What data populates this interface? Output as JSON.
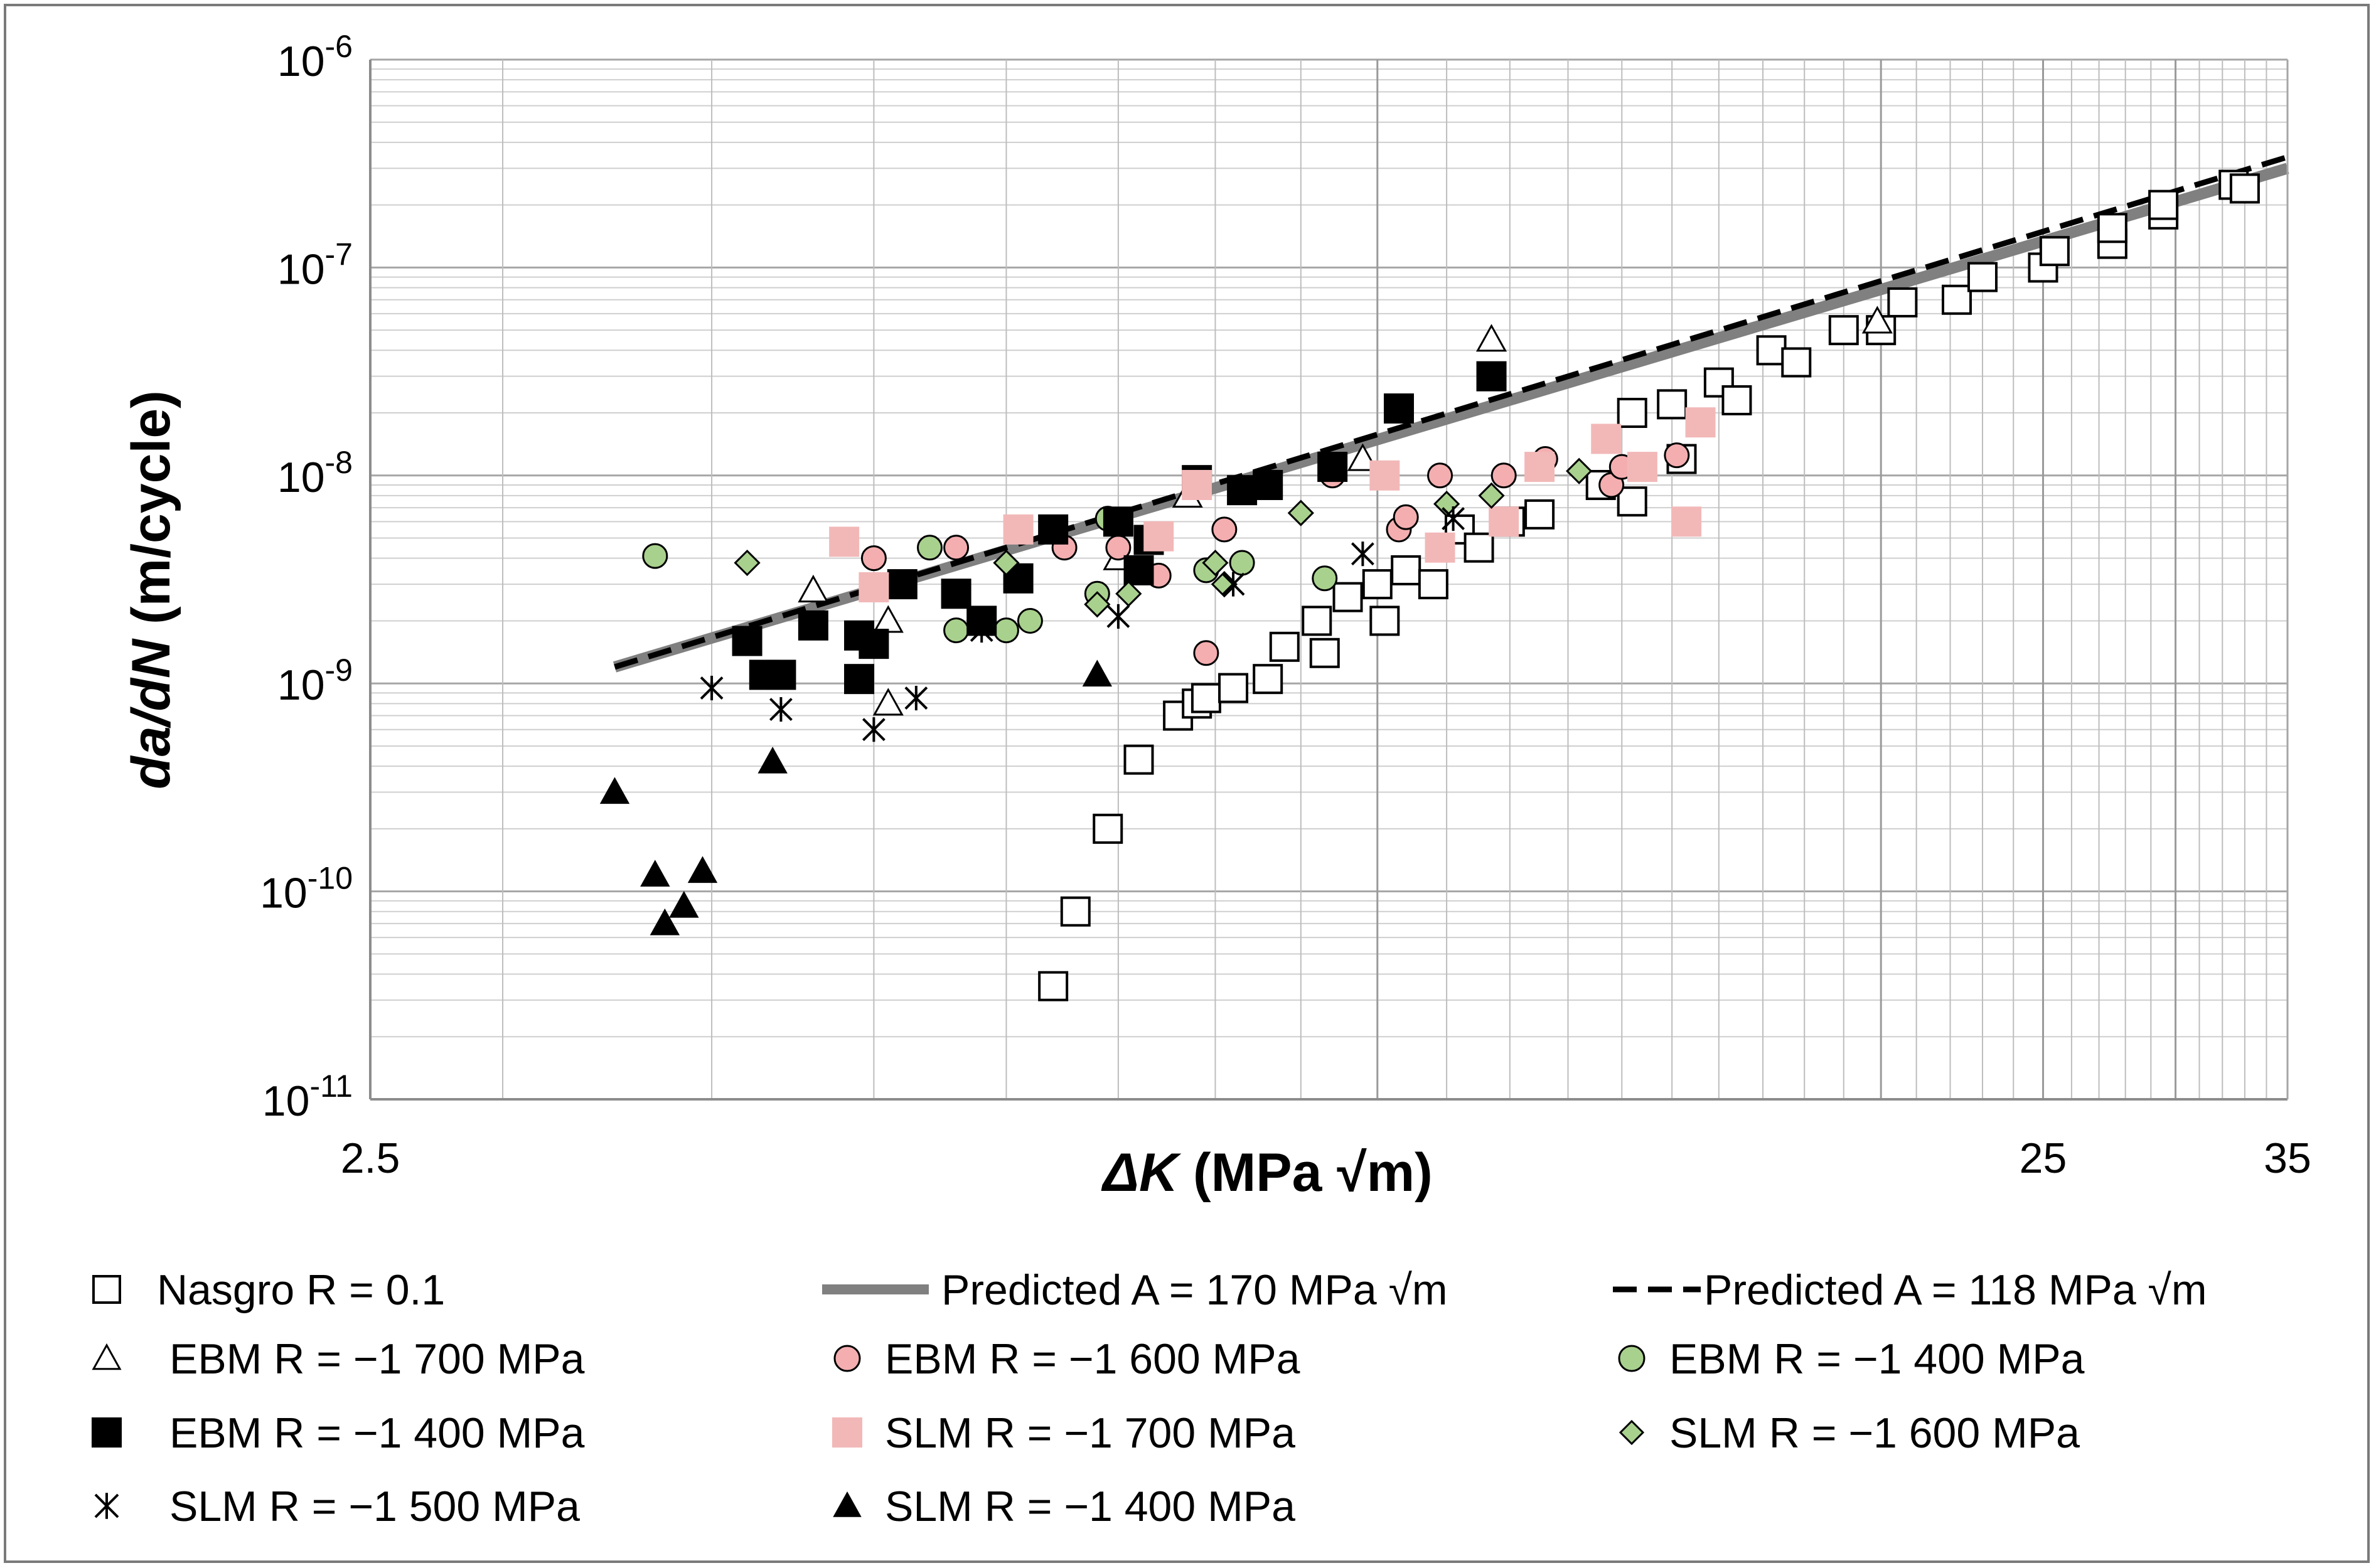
{
  "chart_data": {
    "type": "scatter",
    "x_scale": "log",
    "y_scale": "log",
    "xlim": [
      2.5,
      35
    ],
    "ylim": [
      1e-11,
      1e-06
    ],
    "grid": true,
    "xlabel": {
      "bold_italic": "ΔK",
      "rest": " (MPa √m)"
    },
    "ylabel": {
      "italic": "da/dN",
      "rest": " (m/cycle)"
    },
    "x_ticks": [
      {
        "value": 2.5,
        "label": "2.5"
      },
      {
        "value": 25,
        "label": "25"
      },
      {
        "value": 35,
        "label": "35"
      }
    ],
    "y_ticks": [
      {
        "value": 1e-06,
        "base": "10",
        "exp": "-6"
      },
      {
        "value": 1e-07,
        "base": "10",
        "exp": "-7"
      },
      {
        "value": 1e-08,
        "base": "10",
        "exp": "-8"
      },
      {
        "value": 1e-09,
        "base": "10",
        "exp": "-9"
      },
      {
        "value": 1e-10,
        "base": "10",
        "exp": "-10"
      },
      {
        "value": 1e-11,
        "base": "10",
        "exp": "-11"
      }
    ],
    "lines": [
      {
        "name": "Predicted A = 170 MPa √m",
        "style": "solid-thick",
        "color": "#808080",
        "points": [
          [
            3.5,
            1.2e-09
          ],
          [
            35,
            3e-07
          ]
        ]
      },
      {
        "name": "Predicted A = 118 MPa √m",
        "style": "dashed",
        "color": "#000000",
        "points": [
          [
            3.5,
            1.2e-09
          ],
          [
            35,
            3.4e-07
          ]
        ]
      }
    ],
    "series": [
      {
        "name": "Nasgro R = 0.1",
        "marker": "square-open",
        "color": "#000000",
        "fill": "#ffffff",
        "points": [
          [
            6.4,
            3.5e-11
          ],
          [
            6.6,
            8e-11
          ],
          [
            6.9,
            2e-10
          ],
          [
            7.2,
            4.3e-10
          ],
          [
            7.6,
            7e-10
          ],
          [
            7.8,
            8e-10
          ],
          [
            7.9,
            8.5e-10
          ],
          [
            8.2,
            9.5e-10
          ],
          [
            8.6,
            1.05e-09
          ],
          [
            8.8,
            1.5e-09
          ],
          [
            9.2,
            2e-09
          ],
          [
            9.3,
            1.4e-09
          ],
          [
            9.6,
            2.6e-09
          ],
          [
            10.0,
            3e-09
          ],
          [
            10.1,
            2e-09
          ],
          [
            10.4,
            3.5e-09
          ],
          [
            10.8,
            3e-09
          ],
          [
            11.2,
            5.5e-09
          ],
          [
            11.5,
            4.5e-09
          ],
          [
            12.0,
            6e-09
          ],
          [
            12.5,
            6.5e-09
          ],
          [
            13.6,
            9e-09
          ],
          [
            14.2,
            7.5e-09
          ],
          [
            14.2,
            2e-08
          ],
          [
            15.0,
            2.2e-08
          ],
          [
            15.2,
            1.2e-08
          ],
          [
            16.0,
            2.8e-08
          ],
          [
            16.4,
            2.3e-08
          ],
          [
            17.2,
            4e-08
          ],
          [
            17.8,
            3.5e-08
          ],
          [
            19.0,
            5e-08
          ],
          [
            20.0,
            5e-08
          ],
          [
            20.6,
            6.8e-08
          ],
          [
            22.2,
            7e-08
          ],
          [
            23.0,
            9e-08
          ],
          [
            25.0,
            1e-07
          ],
          [
            25.4,
            1.2e-07
          ],
          [
            27.5,
            1.3e-07
          ],
          [
            27.5,
            1.55e-07
          ],
          [
            29.5,
            1.8e-07
          ],
          [
            29.5,
            2e-07
          ],
          [
            32.5,
            2.5e-07
          ],
          [
            33.0,
            2.4e-07
          ]
        ]
      },
      {
        "name": "EBM R = −1 700 MPa",
        "marker": "triangle-open",
        "color": "#000000",
        "fill": "#ffffff",
        "points": [
          [
            4.6,
            2.8e-09
          ],
          [
            5.1,
            2e-09
          ],
          [
            5.1,
            8e-10
          ],
          [
            7.0,
            4e-09
          ],
          [
            7.7,
            8e-09
          ],
          [
            9.8,
            1.2e-08
          ],
          [
            11.7,
            4.5e-08
          ],
          [
            19.9,
            5.5e-08
          ]
        ]
      },
      {
        "name": "EBM R = −1 600 MPa",
        "marker": "circle",
        "color": "#000000",
        "fill": "#f4aeb0",
        "points": [
          [
            5.0,
            4e-09
          ],
          [
            5.6,
            4.5e-09
          ],
          [
            6.5,
            4.5e-09
          ],
          [
            7.0,
            4.5e-09
          ],
          [
            7.4,
            3.3e-09
          ],
          [
            7.9,
            1.4e-09
          ],
          [
            8.1,
            5.5e-09
          ],
          [
            9.4,
            1e-08
          ],
          [
            10.3,
            5.5e-09
          ],
          [
            10.4,
            6.3e-09
          ],
          [
            10.9,
            1e-08
          ],
          [
            11.9,
            1e-08
          ],
          [
            12.6,
            1.2e-08
          ],
          [
            13.8,
            9e-09
          ],
          [
            14.0,
            1.1e-08
          ],
          [
            15.1,
            1.25e-08
          ]
        ]
      },
      {
        "name": "EBM R = −1 400 MPa",
        "marker": "circle",
        "color": "#000000",
        "fill": "#a9d18e",
        "points": [
          [
            3.7,
            4.1e-09
          ],
          [
            5.4,
            4.5e-09
          ],
          [
            5.6,
            1.8e-09
          ],
          [
            6.0,
            1.8e-09
          ],
          [
            6.2,
            2e-09
          ],
          [
            6.8,
            2.7e-09
          ],
          [
            6.9,
            6.2e-09
          ],
          [
            7.9,
            3.5e-09
          ],
          [
            8.3,
            3.8e-09
          ],
          [
            9.3,
            3.2e-09
          ]
        ]
      },
      {
        "name": "EBM R = −1 400 MPa",
        "marker": "square",
        "color": "#000000",
        "fill": "#000000",
        "points": [
          [
            4.2,
            1.6e-09
          ],
          [
            4.3,
            1.1e-09
          ],
          [
            4.4,
            1.1e-09
          ],
          [
            4.6,
            1.9e-09
          ],
          [
            4.9,
            1.7e-09
          ],
          [
            4.9,
            1.05e-09
          ],
          [
            5.0,
            1.55e-09
          ],
          [
            5.2,
            3e-09
          ],
          [
            5.6,
            2.7e-09
          ],
          [
            5.8,
            2e-09
          ],
          [
            6.1,
            3.2e-09
          ],
          [
            6.4,
            5.5e-09
          ],
          [
            7.0,
            6e-09
          ],
          [
            7.2,
            3.5e-09
          ],
          [
            7.3,
            4.9e-09
          ],
          [
            7.8,
            9.5e-09
          ],
          [
            8.3,
            8.5e-09
          ],
          [
            8.6,
            9e-09
          ],
          [
            9.4,
            1.1e-08
          ],
          [
            10.3,
            2.1e-08
          ],
          [
            11.7,
            3e-08
          ]
        ]
      },
      {
        "name": "SLM R = −1 700 MPa",
        "marker": "square",
        "color": "#f2b8b8",
        "fill": "#f2b8b8",
        "points": [
          [
            4.8,
            4.8e-09
          ],
          [
            5.0,
            2.9e-09
          ],
          [
            6.1,
            5.5e-09
          ],
          [
            7.4,
            5.1e-09
          ],
          [
            7.8,
            9e-09
          ],
          [
            10.1,
            1e-08
          ],
          [
            10.9,
            4.5e-09
          ],
          [
            11.9,
            6e-09
          ],
          [
            12.5,
            1.1e-08
          ],
          [
            13.7,
            1.5e-08
          ],
          [
            14.4,
            1.1e-08
          ],
          [
            15.3,
            6e-09
          ],
          [
            15.6,
            1.8e-08
          ]
        ]
      },
      {
        "name": "SLM R = −1 600 MPa",
        "marker": "diamond",
        "color": "#000000",
        "fill": "#a9d18e",
        "points": [
          [
            4.2,
            3.8e-09
          ],
          [
            6.0,
            3.8e-09
          ],
          [
            6.8,
            2.4e-09
          ],
          [
            7.1,
            2.7e-09
          ],
          [
            8.0,
            3.8e-09
          ],
          [
            8.1,
            3e-09
          ],
          [
            9.0,
            6.6e-09
          ],
          [
            11.0,
            7.3e-09
          ],
          [
            11.7,
            8e-09
          ],
          [
            13.2,
            1.05e-08
          ]
        ]
      },
      {
        "name": "SLM R = −1 500 MPa",
        "marker": "star",
        "color": "#000000",
        "fill": "none",
        "points": [
          [
            4.0,
            9.5e-10
          ],
          [
            4.4,
            7.5e-10
          ],
          [
            5.0,
            6e-10
          ],
          [
            5.3,
            8.5e-10
          ],
          [
            5.8,
            1.8e-09
          ],
          [
            7.0,
            2.1e-09
          ],
          [
            8.2,
            3e-09
          ],
          [
            9.8,
            4.2e-09
          ],
          [
            11.1,
            6.2e-09
          ]
        ]
      },
      {
        "name": "SLM R = −1 400 MPa",
        "marker": "triangle",
        "color": "#000000",
        "fill": "#000000",
        "points": [
          [
            3.5,
            3e-10
          ],
          [
            3.7,
            1.2e-10
          ],
          [
            3.75,
            7e-11
          ],
          [
            3.85,
            8.5e-11
          ],
          [
            3.95,
            1.25e-10
          ],
          [
            4.35,
            4.2e-10
          ],
          [
            6.8,
            1.1e-09
          ]
        ]
      }
    ],
    "legend": {
      "placement": "bottom",
      "entries": [
        {
          "label": "Nasgro R = 0.1",
          "marker": "square-open"
        },
        {
          "label": "Predicted A = 170 MPa √m",
          "marker": "line-gray"
        },
        {
          "label": "Predicted A = 118 MPa √m",
          "marker": "line-dashed"
        },
        {
          "label": "EBM R = −1 700 MPa",
          "marker": "triangle-open"
        },
        {
          "label": "EBM R = −1 600 MPa",
          "marker": "circle-pink"
        },
        {
          "label": "EBM R = −1 400 MPa",
          "marker": "circle-green"
        },
        {
          "label": "EBM R = −1 400 MPa",
          "marker": "square-black"
        },
        {
          "label": "SLM R = −1 700 MPa",
          "marker": "square-pink"
        },
        {
          "label": "SLM R = −1 600 MPa",
          "marker": "diamond-green"
        },
        {
          "label": "SLM R = −1 500 MPa",
          "marker": "star"
        },
        {
          "label": "SLM R = −1 400 MPa",
          "marker": "triangle-black"
        }
      ]
    }
  }
}
